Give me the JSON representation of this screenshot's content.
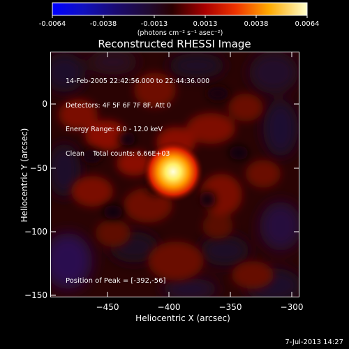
{
  "colorbar": {
    "ticks": [
      "-0.0064",
      "-0.0038",
      "-0.0013",
      "0.0013",
      "0.0038",
      "0.0064"
    ],
    "unit_label": "(photons cm⁻² s⁻¹ asec⁻²)"
  },
  "image": {
    "title": "Reconstructed RHESSI Image",
    "info_lines": [
      "14-Feb-2005 22:42:56.000 to 22:44:36.000",
      "Detectors: 4F 5F 6F 7F 8F, Att 0",
      "Energy Range: 6.0 - 12.0 keV",
      "Clean    Total counts: 6.66E+03"
    ],
    "peak_label": "Position of Peak = [-392,-56]"
  },
  "axes": {
    "xlabel": "Heliocentric X (arcsec)",
    "ylabel": "Heliocentric Y (arcsec)",
    "xticks": [
      "−450",
      "−400",
      "−350",
      "−300"
    ],
    "yticks": [
      "0",
      "−50",
      "−100",
      "−150"
    ]
  },
  "footer": {
    "date": "7-Jul-2013 14:27"
  }
}
